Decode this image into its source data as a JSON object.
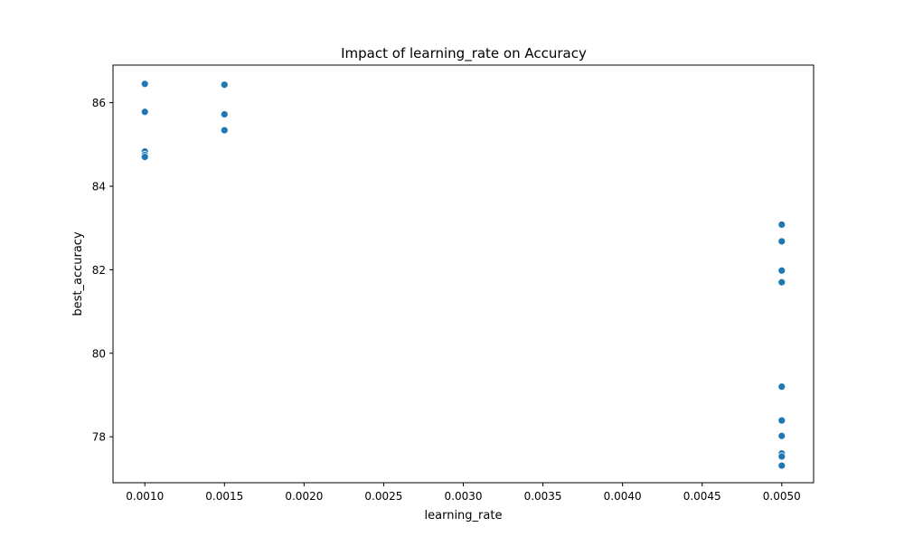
{
  "chart_data": {
    "type": "scatter",
    "title": "Impact of learning_rate on Accuracy",
    "xlabel": "learning_rate",
    "ylabel": "best_accuracy",
    "xlim": [
      0.0008,
      0.0052
    ],
    "ylim": [
      76.9,
      86.9
    ],
    "x_ticks": [
      0.001,
      0.0015,
      0.002,
      0.0025,
      0.003,
      0.0035,
      0.004,
      0.0045,
      0.005
    ],
    "x_tick_labels": [
      "0.0010",
      "0.0015",
      "0.0020",
      "0.0025",
      "0.0030",
      "0.0035",
      "0.0040",
      "0.0045",
      "0.0050"
    ],
    "y_ticks": [
      78,
      80,
      82,
      84,
      86
    ],
    "y_tick_labels": [
      "78",
      "80",
      "82",
      "84",
      "86"
    ],
    "grid": false,
    "marker_color": "#1f77b4",
    "marker_edge_color": "#ffffff",
    "points": [
      {
        "x": 0.001,
        "y": 86.45
      },
      {
        "x": 0.001,
        "y": 85.78
      },
      {
        "x": 0.001,
        "y": 84.83
      },
      {
        "x": 0.001,
        "y": 84.75
      },
      {
        "x": 0.001,
        "y": 84.7
      },
      {
        "x": 0.0015,
        "y": 86.43
      },
      {
        "x": 0.0015,
        "y": 85.72
      },
      {
        "x": 0.0015,
        "y": 85.34
      },
      {
        "x": 0.005,
        "y": 83.08
      },
      {
        "x": 0.005,
        "y": 82.68
      },
      {
        "x": 0.005,
        "y": 81.98
      },
      {
        "x": 0.005,
        "y": 81.7
      },
      {
        "x": 0.005,
        "y": 79.2
      },
      {
        "x": 0.005,
        "y": 78.39
      },
      {
        "x": 0.005,
        "y": 78.02
      },
      {
        "x": 0.005,
        "y": 77.6
      },
      {
        "x": 0.005,
        "y": 77.53
      },
      {
        "x": 0.005,
        "y": 77.31
      }
    ]
  }
}
